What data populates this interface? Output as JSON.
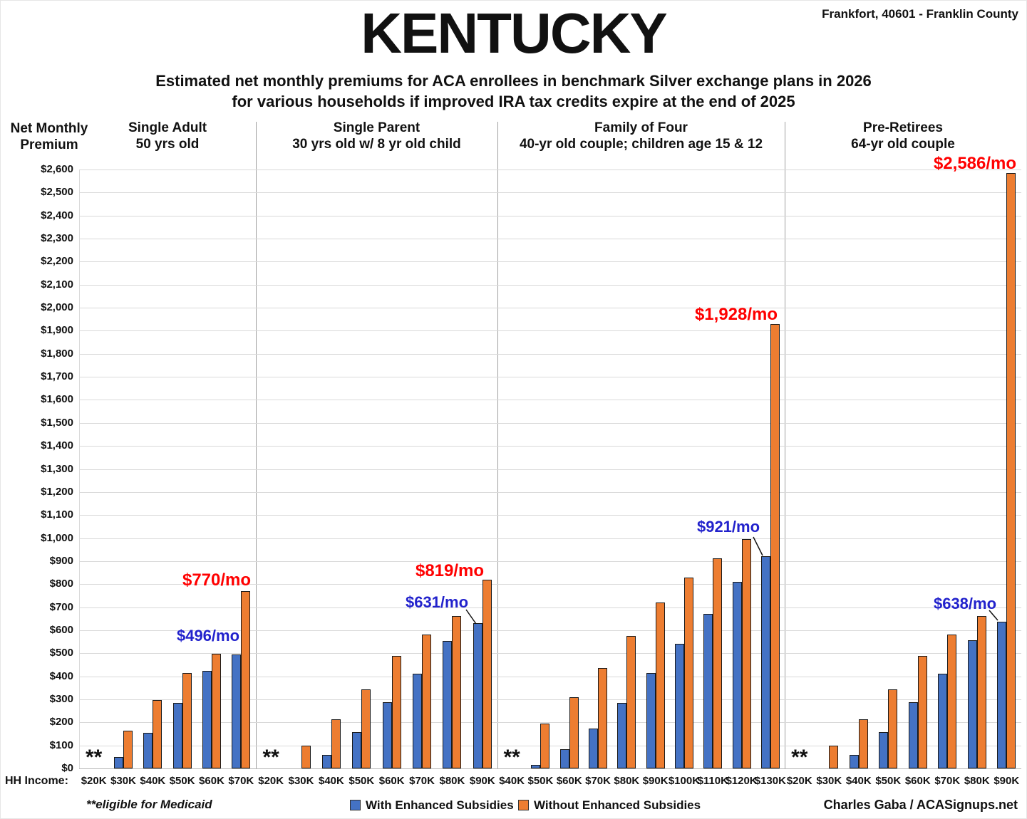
{
  "header": {
    "location": "Frankfort, 40601 - Franklin County",
    "title": "KENTUCKY",
    "subtitle_line1": "Estimated net monthly premiums for ACA enrollees in benchmark Silver exchange plans in 2026",
    "subtitle_line2": "for various households if improved IRA tax credits expire at the end of 2025"
  },
  "chart_data": {
    "type": "bar",
    "title": "KENTUCKY",
    "ylabel_line1": "Net Monthly",
    "ylabel_line2": "Premium",
    "xlabel": "HH Income:",
    "ylim": [
      0,
      2600
    ],
    "gridline_step": 100,
    "grid": true,
    "legend_position": "bottom",
    "y_ticks": [
      "$0",
      "$100",
      "$200",
      "$300",
      "$400",
      "$500",
      "$600",
      "$700",
      "$800",
      "$900",
      "$1,000",
      "$1,100",
      "$1,200",
      "$1,300",
      "$1,400",
      "$1,500",
      "$1,600",
      "$1,700",
      "$1,800",
      "$1,900",
      "$2,000",
      "$2,100",
      "$2,200",
      "$2,300",
      "$2,400",
      "$2,500",
      "$2,600"
    ],
    "colors": {
      "with": "#4472C4",
      "without": "#ED7D31",
      "annotation_blue": "#2222CC",
      "annotation_red": "#FF0000"
    },
    "series_names": [
      "With Enhanced Subsidies",
      "Without Enhanced Subsidies"
    ],
    "medicaid_marker": "**",
    "panels": [
      {
        "title_line1": "Single Adult",
        "title_line2": "50 yrs old",
        "categories": [
          "$20K",
          "$30K",
          "$40K",
          "$50K",
          "$60K",
          "$70K"
        ],
        "with_enhanced": [
          null,
          50,
          155,
          285,
          422,
          496
        ],
        "without_enhanced": [
          null,
          165,
          297,
          413,
          497,
          770
        ],
        "annotations": [
          {
            "text": "$496/mo",
            "color": "blue",
            "target": "$70K with"
          },
          {
            "text": "$770/mo",
            "color": "red",
            "target": "$70K without"
          }
        ]
      },
      {
        "title_line1": "Single Parent",
        "title_line2": "30 yrs old w/ 8 yr old child",
        "categories": [
          "$20K",
          "$30K",
          "$40K",
          "$50K",
          "$60K",
          "$70K",
          "$80K",
          "$90K"
        ],
        "with_enhanced": [
          null,
          0,
          60,
          158,
          287,
          412,
          553,
          631
        ],
        "without_enhanced": [
          null,
          100,
          213,
          343,
          488,
          580,
          663,
          819
        ],
        "annotations": [
          {
            "text": "$631/mo",
            "color": "blue",
            "target": "$90K with"
          },
          {
            "text": "$819/mo",
            "color": "red",
            "target": "$90K without"
          }
        ]
      },
      {
        "title_line1": "Family of Four",
        "title_line2": "40-yr old couple; children age 15 & 12",
        "categories": [
          "$40K",
          "$50K",
          "$60K",
          "$70K",
          "$80K",
          "$90K",
          "$100K",
          "$110K",
          "$120K",
          "$130K"
        ],
        "with_enhanced": [
          null,
          15,
          85,
          172,
          285,
          415,
          540,
          670,
          810,
          921
        ],
        "without_enhanced": [
          null,
          195,
          310,
          437,
          575,
          720,
          830,
          913,
          995,
          1928
        ],
        "annotations": [
          {
            "text": "$921/mo",
            "color": "blue",
            "target": "$130K with"
          },
          {
            "text": "$1,928/mo",
            "color": "red",
            "target": "$130K without"
          }
        ]
      },
      {
        "title_line1": "Pre-Retirees",
        "title_line2": "64-yr old couple",
        "categories": [
          "$20K",
          "$30K",
          "$40K",
          "$50K",
          "$60K",
          "$70K",
          "$80K",
          "$90K"
        ],
        "with_enhanced": [
          null,
          0,
          60,
          158,
          287,
          412,
          555,
          638
        ],
        "without_enhanced": [
          null,
          100,
          213,
          343,
          488,
          580,
          663,
          2586
        ],
        "annotations": [
          {
            "text": "$638/mo",
            "color": "blue",
            "target": "$90K with"
          },
          {
            "text": "$2,586/mo",
            "color": "red",
            "target": "$90K without"
          }
        ]
      }
    ]
  },
  "legend": {
    "items": [
      {
        "label": "With Enhanced Subsidies",
        "series": "with"
      },
      {
        "label": "Without Enhanced Subsidies",
        "series": "without"
      }
    ]
  },
  "footnotes": {
    "medicaid": "**eligible for Medicaid",
    "credit": "Charles Gaba / ACASignups.net"
  }
}
